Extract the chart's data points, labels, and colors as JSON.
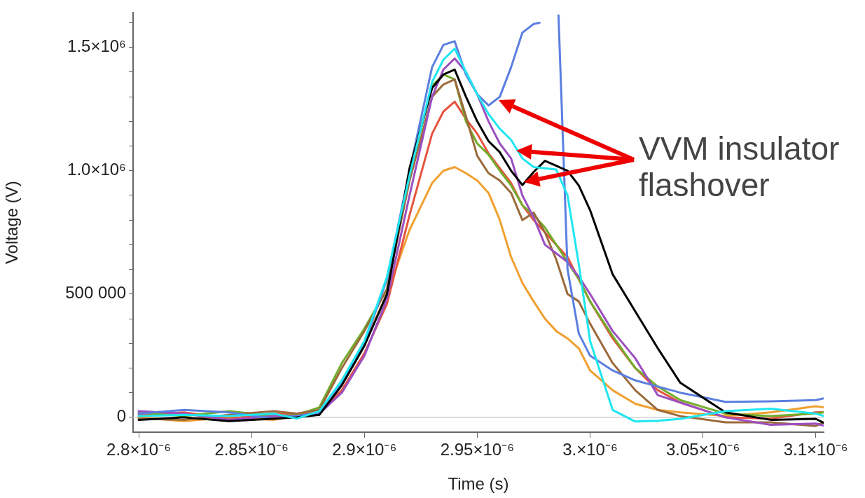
{
  "chart_data": {
    "type": "line",
    "xlabel": "Time (s)",
    "ylabel": "Voltage (V)",
    "annotations": [
      "VVM insulator flashover"
    ],
    "x": [
      2.8e-06,
      2.82e-06,
      2.84e-06,
      2.86e-06,
      2.87e-06,
      2.88e-06,
      2.89e-06,
      2.9e-06,
      2.91e-06,
      2.92e-06,
      2.93e-06,
      2.935e-06,
      2.94e-06,
      2.945e-06,
      2.95e-06,
      2.955e-06,
      2.96e-06,
      2.965e-06,
      2.97e-06,
      2.975e-06,
      2.98e-06,
      2.985e-06,
      2.99e-06,
      2.995e-06,
      3e-06,
      3.01e-06,
      3.02e-06,
      3.03e-06,
      3.04e-06,
      3.06e-06,
      3.08e-06,
      3.1e-06,
      3.1035e-06
    ],
    "xlim": [
      2.7975e-06,
      3.1035e-06
    ],
    "ylim": [
      -60000,
      1640000
    ],
    "xticks": [
      {
        "value": 2.8e-06,
        "label": "2.8×10⁻⁶"
      },
      {
        "value": 2.85e-06,
        "label": "2.85×10⁻⁶"
      },
      {
        "value": 2.9e-06,
        "label": "2.9×10⁻⁶"
      },
      {
        "value": 2.95e-06,
        "label": "2.95×10⁻⁶"
      },
      {
        "value": 3e-06,
        "label": "3.×10⁻⁶"
      },
      {
        "value": 3.05e-06,
        "label": "3.05×10⁻⁶"
      },
      {
        "value": 3.1e-06,
        "label": "3.1×10⁻⁶"
      }
    ],
    "yticks": [
      0,
      {
        "value": 100000,
        "label": null
      },
      {
        "value": 200000,
        "label": null
      },
      {
        "value": 300000,
        "label": null
      },
      {
        "value": 400000,
        "label": null
      },
      {
        "value": 500000,
        "label": "500 000"
      },
      {
        "value": 600000,
        "label": null
      },
      {
        "value": 700000,
        "label": null
      },
      {
        "value": 800000,
        "label": null
      },
      {
        "value": 900000,
        "label": null
      },
      {
        "value": 1000000,
        "label": "1.0×10⁶"
      },
      {
        "value": 1100000,
        "label": null
      },
      {
        "value": 1200000,
        "label": null
      },
      {
        "value": 1300000,
        "label": null
      },
      {
        "value": 1400000,
        "label": null
      },
      {
        "value": 1500000,
        "label": "1.5×10⁶"
      },
      {
        "value": 1600000,
        "label": null
      }
    ],
    "ref_lines": [
      {
        "axis": "y",
        "value": 0,
        "color": "#d0d0d0"
      }
    ],
    "grid": false,
    "legend": false,
    "marker": "none",
    "line_style": "solid",
    "series": [
      {
        "color": "#f0a030",
        "values": [
          0,
          -15000,
          0,
          -10000,
          5000,
          10000,
          150000,
          300000,
          500000,
          760000,
          950000,
          1000000,
          1015000,
          990000,
          960000,
          910000,
          800000,
          650000,
          545000,
          470000,
          400000,
          350000,
          320000,
          280000,
          190000,
          110000,
          55000,
          30000,
          20000,
          6000,
          20000,
          45000,
          41000
        ]
      },
      {
        "color": "#e5543f",
        "values": [
          10000,
          20000,
          -5000,
          15000,
          10000,
          20000,
          110000,
          260000,
          460000,
          820000,
          1150000,
          1240000,
          1280000,
          1210000,
          1150000,
          1070000,
          1010000,
          950000,
          860000,
          800000,
          750000,
          700000,
          650000,
          560000,
          470000,
          320000,
          200000,
          110000,
          60000,
          0,
          -5000,
          20000,
          22000
        ]
      },
      {
        "color": "#72ad2c",
        "values": [
          20000,
          5000,
          25000,
          5000,
          10000,
          40000,
          220000,
          360000,
          520000,
          990000,
          1345000,
          1390000,
          1370000,
          1200000,
          1110000,
          1065000,
          1000000,
          940000,
          860000,
          820000,
          770000,
          700000,
          630000,
          560000,
          470000,
          330000,
          200000,
          125000,
          70000,
          15000,
          5000,
          15000,
          20000
        ]
      },
      {
        "color": "#9b6a3b",
        "values": [
          -5000,
          -10000,
          10000,
          25000,
          15000,
          30000,
          200000,
          350000,
          520000,
          960000,
          1300000,
          1350000,
          1370000,
          1220000,
          1060000,
          990000,
          960000,
          910000,
          800000,
          830000,
          750000,
          640000,
          500000,
          470000,
          380000,
          220000,
          110000,
          30000,
          5000,
          -20000,
          -20000,
          -35000,
          -20000
        ]
      },
      {
        "color": "#9b4fc0",
        "values": [
          25000,
          15000,
          -10000,
          5000,
          5000,
          15000,
          100000,
          250000,
          480000,
          900000,
          1300000,
          1410000,
          1455000,
          1400000,
          1310000,
          1200000,
          1110000,
          1050000,
          900000,
          810000,
          700000,
          665000,
          630000,
          570000,
          500000,
          350000,
          240000,
          90000,
          60000,
          0,
          -30000,
          -25000,
          -33000
        ]
      },
      {
        "color": "#5b7fe0",
        "x": [
          2.8e-06,
          2.82e-06,
          2.84e-06,
          2.86e-06,
          2.87e-06,
          2.88e-06,
          2.89e-06,
          2.9e-06,
          2.91e-06,
          2.92e-06,
          2.93e-06,
          2.935e-06,
          2.94e-06,
          2.945e-06,
          2.95e-06,
          2.955e-06,
          2.96e-06,
          2.965e-06,
          2.97e-06,
          2.975e-06,
          2.9776e-06,
          2.98e-06,
          2.986e-06,
          2.99e-06,
          2.995e-06,
          3e-06,
          3.01e-06,
          3.02e-06,
          3.03e-06,
          3.04e-06,
          3.06e-06,
          3.08e-06,
          3.1e-06,
          3.1035e-06
        ],
        "values": [
          15000,
          30000,
          20000,
          -5000,
          5000,
          20000,
          140000,
          300000,
          560000,
          1000000,
          1420000,
          1510000,
          1525000,
          1390000,
          1310000,
          1265000,
          1300000,
          1420000,
          1560000,
          1595000,
          1600000,
          null,
          1630000,
          600000,
          340000,
          250000,
          190000,
          150000,
          125000,
          100000,
          63000,
          65000,
          70000,
          77000
        ]
      },
      {
        "color": "#000000",
        "values": [
          -10000,
          0,
          -15000,
          -5000,
          0,
          10000,
          130000,
          290000,
          500000,
          1010000,
          1335000,
          1390000,
          1410000,
          1300000,
          1200000,
          1120000,
          1075000,
          1000000,
          942000,
          995000,
          1040000,
          1020000,
          1000000,
          940000,
          840000,
          580000,
          430000,
          280000,
          140000,
          20000,
          -10000,
          -6000,
          -22000
        ]
      },
      {
        "color": "#1fe6f0",
        "values": [
          5000,
          10000,
          5000,
          15000,
          -5000,
          25000,
          150000,
          310000,
          570000,
          980000,
          1360000,
          1450000,
          1495000,
          1400000,
          1310000,
          1230000,
          1170000,
          1125000,
          1050000,
          1015000,
          1010000,
          1005000,
          900000,
          620000,
          310000,
          30000,
          -17000,
          -14000,
          -6000,
          25000,
          35000,
          15000,
          6000
        ]
      }
    ]
  }
}
